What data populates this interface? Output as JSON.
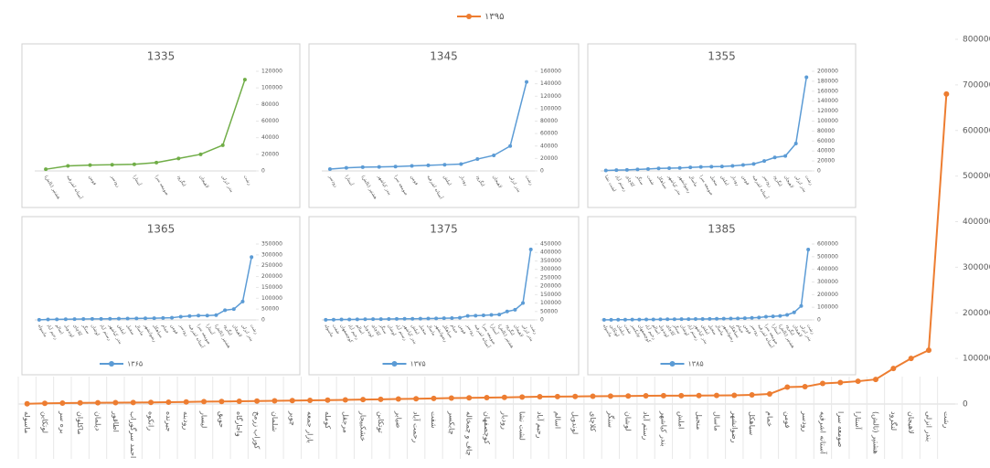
{
  "chart_data": [
    {
      "type": "line",
      "categories": [
        "ماسوله",
        "لوتکاین",
        "بره سر",
        "ماکلوان",
        "دیلمان",
        "اطاقور",
        "احمد سرگوراب",
        "رانکوه",
        "جیرنده",
        "رودبنه",
        "لیسار",
        "حویق",
        "واجارگاه",
        "کوراب زرمخ",
        "شلمان",
        "چوبر",
        "بازار جمعه",
        "کومله",
        "مرجقل",
        "خشکبیجار",
        "توتکابن",
        "ضیابر",
        "رحمت آباد",
        "شفت",
        "چابکسر",
        "چاف و چمخاله",
        "کوچصفهان",
        "رودبار",
        "لشت نشا",
        "رحیم آباد",
        "اسالم",
        "لوندویل",
        "کلاچای",
        "سنگر",
        "لوشان",
        "رستم آباد",
        "بندر کیاشهر",
        "املش",
        "منجیل",
        "ماسال",
        "رضوانشهر",
        "سیاهکل",
        "خمام",
        "فومن",
        "رودسر",
        "آستانه اشرفیه",
        "صومعه سرا",
        "آستارا",
        "هشتپر (تالش)",
        "لنگرود",
        "لاهیجان",
        "بندر انزلی",
        "رشت"
      ],
      "series": [
        {
          "name": "۱۳۹۵",
          "color": "#ed7d31",
          "values": [
            600,
            1500,
            2100,
            2500,
            2700,
            3000,
            3200,
            3600,
            4100,
            4600,
            5200,
            5600,
            6000,
            6500,
            7000,
            7600,
            8000,
            8600,
            9100,
            9700,
            10200,
            11000,
            11600,
            12200,
            13000,
            13500,
            14000,
            14600,
            15200,
            16000,
            16300,
            16600,
            17000,
            17300,
            17600,
            18000,
            18200,
            18400,
            18600,
            18800,
            19000,
            20000,
            22000,
            37000,
            38000,
            45000,
            47000,
            50000,
            54000,
            78000,
            100000,
            118000,
            680000
          ]
        }
      ],
      "ylim": [
        0,
        800000
      ],
      "yticks": [
        0,
        100000,
        200000,
        300000,
        400000,
        500000,
        600000,
        700000,
        800000
      ]
    },
    {
      "type": "line",
      "title": "1335",
      "color": "#70ad47",
      "categories": [
        "هشتپر (تالش)",
        "آستانه اشرفیه",
        "فومن",
        "رودسر",
        "آستارا",
        "صومعه سرا",
        "لنگرود",
        "لاهیجان",
        "بندر انزلی",
        "رشت"
      ],
      "values": [
        2000,
        6000,
        7000,
        7500,
        8000,
        10000,
        15000,
        20000,
        31000,
        110000
      ],
      "ylim": [
        0,
        120000
      ],
      "yticks": [
        0,
        20000,
        40000,
        60000,
        80000,
        100000,
        120000
      ]
    },
    {
      "type": "line",
      "title": "1345",
      "color": "#5b9bd5",
      "categories": [
        "رودسر",
        "آستارا",
        "هشتپر (تالش)",
        "بندر کیاشهر",
        "صومعه سرا",
        "فومن",
        "آستانه اشرفیه",
        "املش",
        "رودبار",
        "لنگرود",
        "لاهیجان",
        "بندر انزلی",
        "رشت"
      ],
      "values": [
        3000,
        5000,
        6000,
        6500,
        7000,
        8000,
        9000,
        10000,
        11000,
        19000,
        25000,
        40000,
        143000
      ],
      "ylim": [
        0,
        160000
      ],
      "yticks": [
        0,
        20000,
        40000,
        60000,
        80000,
        100000,
        120000,
        140000,
        160000
      ]
    },
    {
      "type": "line",
      "title": "1355",
      "color": "#5b9bd5",
      "categories": [
        "لشت نشا",
        "رستم آباد",
        "کلاچای",
        "سنگر",
        "شفت",
        "سیاهکل",
        "بندر کیاشهر",
        "رضوانشهر",
        "ماسال",
        "صومعه سرا",
        "منجیل",
        "املش",
        "رودبار",
        "فومن",
        "آستانه اشرفیه",
        "رودسر",
        "لنگرود",
        "لاهیجان",
        "بندر انزلی",
        "رشت"
      ],
      "values": [
        1000,
        1500,
        2000,
        3000,
        4000,
        5000,
        5500,
        6000,
        7000,
        8000,
        8500,
        9000,
        10000,
        12000,
        14000,
        20000,
        27000,
        30000,
        55000,
        188000
      ],
      "ylim": [
        0,
        200000
      ],
      "yticks": [
        0,
        20000,
        40000,
        60000,
        80000,
        100000,
        120000,
        140000,
        160000,
        180000,
        200000
      ]
    },
    {
      "type": "line",
      "title": "1365",
      "categories": [
        "ماسوله",
        "رحیم آباد",
        "اسالم",
        "لوندویل",
        "کلاچای",
        "سنگر",
        "لوشان",
        "رستم آباد",
        "بندر کیاشهر",
        "املش",
        "منجیل",
        "ماسال",
        "رضوانشهر",
        "سیاهکل",
        "خمام",
        "فومن",
        "رودسر",
        "آستانه اشرفیه",
        "صومعه سرا",
        "آستارا",
        "هشتپر (تالش)",
        "لنگرود",
        "لاهیجان",
        "بندر انزلی",
        "رشت"
      ],
      "series": [
        {
          "name": "۱۳۶۵",
          "color": "#5b9bd5",
          "values": [
            500,
            2000,
            2500,
            3000,
            3500,
            4000,
            4500,
            5000,
            5500,
            6000,
            6500,
            7000,
            7500,
            8000,
            9000,
            10000,
            15000,
            18000,
            20000,
            20000,
            22000,
            45000,
            50000,
            85000,
            290000
          ]
        }
      ],
      "ylim": [
        0,
        350000
      ],
      "yticks": [
        0,
        50000,
        100000,
        150000,
        200000,
        250000,
        300000,
        350000
      ]
    },
    {
      "type": "line",
      "title": "1375",
      "categories": [
        "ماسوله",
        "شفت",
        "کوچصفهان",
        "رحیم آباد",
        "اسالم",
        "لوندویل",
        "کلاچای",
        "سنگر",
        "لوشان",
        "رستم آباد",
        "بندر کیاشهر",
        "املش",
        "منجیل",
        "ماسال",
        "رضوانشهر",
        "سیاهکل",
        "خمام",
        "فومن",
        "رودسر",
        "آستانه اشرفیه",
        "صومعه سرا",
        "آستارا",
        "هشتپر (تالش)",
        "لنگرود",
        "لاهیجان",
        "بندر انزلی",
        "رشت"
      ],
      "series": [
        {
          "name": "۱۳۷۵",
          "color": "#5b9bd5",
          "values": [
            600,
            1500,
            2500,
            3000,
            3500,
            4000,
            4500,
            5000,
            5500,
            6000,
            6500,
            7000,
            7500,
            8000,
            9000,
            10000,
            11000,
            13000,
            24000,
            25000,
            27000,
            30000,
            32000,
            50000,
            60000,
            100000,
            418000
          ]
        }
      ],
      "ylim": [
        0,
        450000
      ],
      "yticks": [
        0,
        50000,
        100000,
        150000,
        200000,
        250000,
        300000,
        350000,
        400000,
        450000
      ]
    },
    {
      "type": "line",
      "title": "1385",
      "categories": [
        "ماسوله",
        "لوتکاین",
        "دیلمان",
        "شفت",
        "چابکسر",
        "کوچصفهان",
        "رحیم آباد",
        "اسالم",
        "لوندویل",
        "کلاچای",
        "سنگر",
        "لوشان",
        "رستم آباد",
        "بندر کیاشهر",
        "املش",
        "منجیل",
        "ماسال",
        "رضوانشهر",
        "سیاهکل",
        "خمام",
        "فومن",
        "رودسر",
        "آستانه اشرفیه",
        "صومعه سرا",
        "آستارا",
        "هشتپر (تالش)",
        "لنگرود",
        "لاهیجان",
        "بندر انزلی",
        "رشت"
      ],
      "series": [
        {
          "name": "۱۳۸۵",
          "color": "#5b9bd5",
          "values": [
            500,
            1000,
            1500,
            2000,
            2500,
            3000,
            3500,
            4000,
            4500,
            5000,
            5500,
            6000,
            6500,
            7000,
            7500,
            8000,
            9000,
            10000,
            11000,
            12000,
            14000,
            16000,
            19000,
            25000,
            28000,
            32000,
            40000,
            60000,
            110000,
            557000
          ]
        }
      ],
      "ylim": [
        0,
        600000
      ],
      "yticks": [
        0,
        100000,
        200000,
        300000,
        400000,
        500000,
        600000
      ]
    }
  ]
}
